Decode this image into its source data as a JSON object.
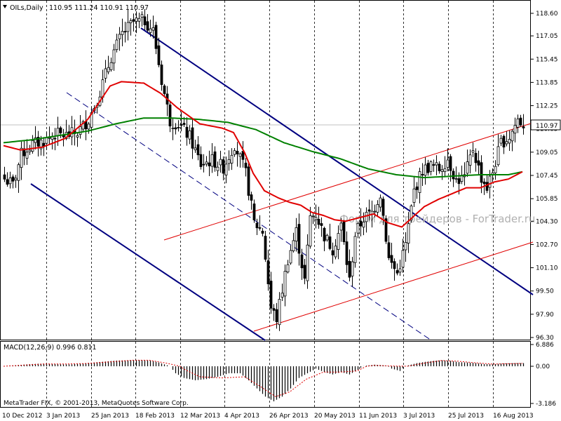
{
  "chart_data": {
    "type": "candlestick",
    "symbol_line": "OILs,Daily",
    "ohlc": "110.95 111.24 110.91 110.97",
    "price_axis": {
      "ticks": [
        "118.60",
        "117.05",
        "115.45",
        "113.85",
        "112.25",
        "110.65",
        "109.05",
        "107.45",
        "105.85",
        "104.30",
        "102.70",
        "101.10",
        "99.50",
        "97.90",
        "96.30"
      ],
      "ylim": [
        96.3,
        118.6
      ]
    },
    "current_price": "110.97",
    "time_axis": [
      "10 Dec 2012",
      "3 Jan 2013",
      "25 Jan 2013",
      "18 Feb 2013",
      "12 Mar 2013",
      "4 Apr 2013",
      "26 Apr 2013",
      "20 May 2013",
      "11 Jun 2013",
      "3 Jul 2013",
      "25 Jul 2013",
      "16 Aug 2013"
    ],
    "price_anchors": [
      [
        0,
        107.2
      ],
      [
        3,
        106.8
      ],
      [
        6,
        108.9
      ],
      [
        10,
        109.6
      ],
      [
        14,
        109.8
      ],
      [
        18,
        110.3
      ],
      [
        22,
        110.2
      ],
      [
        26,
        110.4
      ],
      [
        30,
        111.3
      ],
      [
        34,
        113.2
      ],
      [
        38,
        115.6
      ],
      [
        42,
        117.2
      ],
      [
        46,
        118.0
      ],
      [
        50,
        118.1
      ],
      [
        53,
        117.4
      ],
      [
        56,
        114.0
      ],
      [
        59,
        111.2
      ],
      [
        62,
        111.0
      ],
      [
        66,
        110.1
      ],
      [
        70,
        108.2
      ],
      [
        74,
        108.5
      ],
      [
        78,
        108.0
      ],
      [
        82,
        109.6
      ],
      [
        86,
        107.6
      ],
      [
        89,
        104.2
      ],
      [
        92,
        103.6
      ],
      [
        95,
        98.3
      ],
      [
        97,
        97.6
      ],
      [
        99,
        99.6
      ],
      [
        101,
        101.7
      ],
      [
        104,
        103.6
      ],
      [
        107,
        100.2
      ],
      [
        109,
        104.6
      ],
      [
        111,
        104.8
      ],
      [
        114,
        103.3
      ],
      [
        117,
        102.4
      ],
      [
        120,
        104.0
      ],
      [
        123,
        100.2
      ],
      [
        125,
        103.4
      ],
      [
        128,
        104.5
      ],
      [
        131,
        104.9
      ],
      [
        134,
        106.2
      ],
      [
        137,
        101.7
      ],
      [
        140,
        100.7
      ],
      [
        143,
        102.7
      ],
      [
        146,
        106.4
      ],
      [
        149,
        107.8
      ],
      [
        152,
        108.1
      ],
      [
        155,
        107.9
      ],
      [
        158,
        108.6
      ],
      [
        161,
        107.1
      ],
      [
        164,
        107.3
      ],
      [
        167,
        109.3
      ],
      [
        170,
        107.3
      ],
      [
        172,
        106.6
      ],
      [
        174,
        107.7
      ],
      [
        177,
        109.7
      ],
      [
        180,
        110.1
      ],
      [
        183,
        111.3
      ],
      [
        185,
        110.97
      ]
    ],
    "ma_fast_anchors": [
      [
        0,
        109.5
      ],
      [
        6,
        109.2
      ],
      [
        14,
        109.4
      ],
      [
        22,
        110.0
      ],
      [
        30,
        111.3
      ],
      [
        38,
        113.6
      ],
      [
        42,
        113.9
      ],
      [
        50,
        113.8
      ],
      [
        56,
        113.1
      ],
      [
        62,
        112.1
      ],
      [
        70,
        111.0
      ],
      [
        78,
        110.7
      ],
      [
        82,
        110.4
      ],
      [
        86,
        109.0
      ],
      [
        89,
        107.6
      ],
      [
        93,
        106.4
      ],
      [
        98,
        105.9
      ],
      [
        102,
        105.6
      ],
      [
        106,
        105.4
      ],
      [
        110,
        104.9
      ],
      [
        114,
        104.7
      ],
      [
        118,
        104.4
      ],
      [
        122,
        104.3
      ],
      [
        128,
        104.6
      ],
      [
        132,
        104.8
      ],
      [
        137,
        104.2
      ],
      [
        142,
        103.9
      ],
      [
        146,
        104.6
      ],
      [
        150,
        105.3
      ],
      [
        155,
        105.8
      ],
      [
        160,
        106.2
      ],
      [
        165,
        106.6
      ],
      [
        170,
        106.6
      ],
      [
        175,
        107.0
      ],
      [
        180,
        107.2
      ],
      [
        185,
        107.7
      ]
    ],
    "ma_slow_anchors": [
      [
        0,
        109.7
      ],
      [
        10,
        109.9
      ],
      [
        20,
        110.2
      ],
      [
        30,
        110.5
      ],
      [
        40,
        111.0
      ],
      [
        50,
        111.4
      ],
      [
        60,
        111.4
      ],
      [
        70,
        111.3
      ],
      [
        80,
        111.1
      ],
      [
        90,
        110.6
      ],
      [
        100,
        109.7
      ],
      [
        110,
        109.1
      ],
      [
        120,
        108.6
      ],
      [
        130,
        107.9
      ],
      [
        140,
        107.5
      ],
      [
        150,
        107.3
      ],
      [
        160,
        107.4
      ],
      [
        170,
        107.5
      ],
      [
        180,
        107.5
      ],
      [
        185,
        107.7
      ]
    ],
    "channel_lines": [
      {
        "color": "#000080",
        "width": 2,
        "dash": false,
        "points": [
          [
            201,
            40
          ],
          [
            760,
            420
          ]
        ]
      },
      {
        "color": "#000080",
        "width": 2,
        "dash": false,
        "points": [
          [
            44,
            262
          ],
          [
            378,
            485
          ]
        ]
      },
      {
        "color": "#000080",
        "width": 1,
        "dash": true,
        "points": [
          [
            95,
            132
          ],
          [
            615,
            485
          ]
        ]
      },
      {
        "color": "#e00000",
        "width": 1,
        "dash": false,
        "points": [
          [
            234,
            342
          ],
          [
            760,
            175
          ]
        ]
      },
      {
        "color": "#e00000",
        "width": 1,
        "dash": false,
        "points": [
          [
            362,
            472
          ],
          [
            760,
            345
          ]
        ]
      }
    ],
    "macd": {
      "label": "MACD(12,26,9) 0.996 0.811",
      "ticks": [
        "6.886",
        "0.00",
        "-3.186"
      ],
      "ylim": [
        -3.186,
        6.886
      ],
      "hist_anchors": [
        [
          0,
          0.1
        ],
        [
          4,
          0.3
        ],
        [
          8,
          0.6
        ],
        [
          12,
          0.8
        ],
        [
          16,
          0.8
        ],
        [
          20,
          0.6
        ],
        [
          24,
          0.6
        ],
        [
          28,
          0.9
        ],
        [
          32,
          1.2
        ],
        [
          36,
          1.5
        ],
        [
          40,
          1.8
        ],
        [
          44,
          1.9
        ],
        [
          48,
          2.0
        ],
        [
          52,
          1.8
        ],
        [
          55,
          1.2
        ],
        [
          58,
          0.3
        ],
        [
          61,
          -0.6
        ],
        [
          64,
          -1.0
        ],
        [
          68,
          -1.2
        ],
        [
          72,
          -1.1
        ],
        [
          76,
          -0.9
        ],
        [
          80,
          -0.6
        ],
        [
          84,
          -0.6
        ],
        [
          87,
          -1.2
        ],
        [
          90,
          -1.9
        ],
        [
          93,
          -2.6
        ],
        [
          96,
          -3.0
        ],
        [
          99,
          -2.6
        ],
        [
          102,
          -1.9
        ],
        [
          105,
          -1.0
        ],
        [
          108,
          -0.6
        ],
        [
          111,
          -0.2
        ],
        [
          114,
          -0.5
        ],
        [
          117,
          -0.7
        ],
        [
          120,
          -0.5
        ],
        [
          123,
          -0.7
        ],
        [
          126,
          -0.3
        ],
        [
          129,
          0.2
        ],
        [
          132,
          0.5
        ],
        [
          135,
          0.3
        ],
        [
          138,
          -0.2
        ],
        [
          141,
          -0.4
        ],
        [
          144,
          0.3
        ],
        [
          147,
          1.0
        ],
        [
          150,
          1.4
        ],
        [
          153,
          1.7
        ],
        [
          156,
          1.9
        ],
        [
          159,
          1.7
        ],
        [
          162,
          1.3
        ],
        [
          165,
          1.2
        ],
        [
          168,
          1.0
        ],
        [
          171,
          0.7
        ],
        [
          174,
          0.6
        ],
        [
          178,
          0.9
        ],
        [
          182,
          1.0
        ],
        [
          185,
          1.0
        ]
      ],
      "signal_anchors": [
        [
          0,
          0.0
        ],
        [
          6,
          0.3
        ],
        [
          14,
          0.7
        ],
        [
          22,
          0.7
        ],
        [
          30,
          0.9
        ],
        [
          38,
          1.4
        ],
        [
          46,
          1.9
        ],
        [
          52,
          1.9
        ],
        [
          58,
          1.0
        ],
        [
          64,
          -0.2
        ],
        [
          70,
          -0.9
        ],
        [
          78,
          -1.0
        ],
        [
          86,
          -0.9
        ],
        [
          92,
          -1.8
        ],
        [
          97,
          -2.6
        ],
        [
          102,
          -2.2
        ],
        [
          108,
          -1.1
        ],
        [
          114,
          -0.5
        ],
        [
          120,
          -0.5
        ],
        [
          126,
          -0.4
        ],
        [
          132,
          0.3
        ],
        [
          138,
          0.1
        ],
        [
          144,
          0.0
        ],
        [
          150,
          1.0
        ],
        [
          156,
          1.8
        ],
        [
          162,
          1.6
        ],
        [
          168,
          1.1
        ],
        [
          174,
          0.7
        ],
        [
          180,
          0.8
        ],
        [
          185,
          0.9
        ]
      ]
    },
    "watermark": "Форум для трейдеров - ForTrader.ru",
    "copyright": "MetaTrader FIX, © 2001-2013, MetaQuotes Software Corp.",
    "colors": {
      "candle": "#000000",
      "ma_fast": "#e00000",
      "ma_slow": "#008000",
      "channel": "#000080",
      "macd_signal": "#e00000",
      "grid": "#000000"
    }
  }
}
